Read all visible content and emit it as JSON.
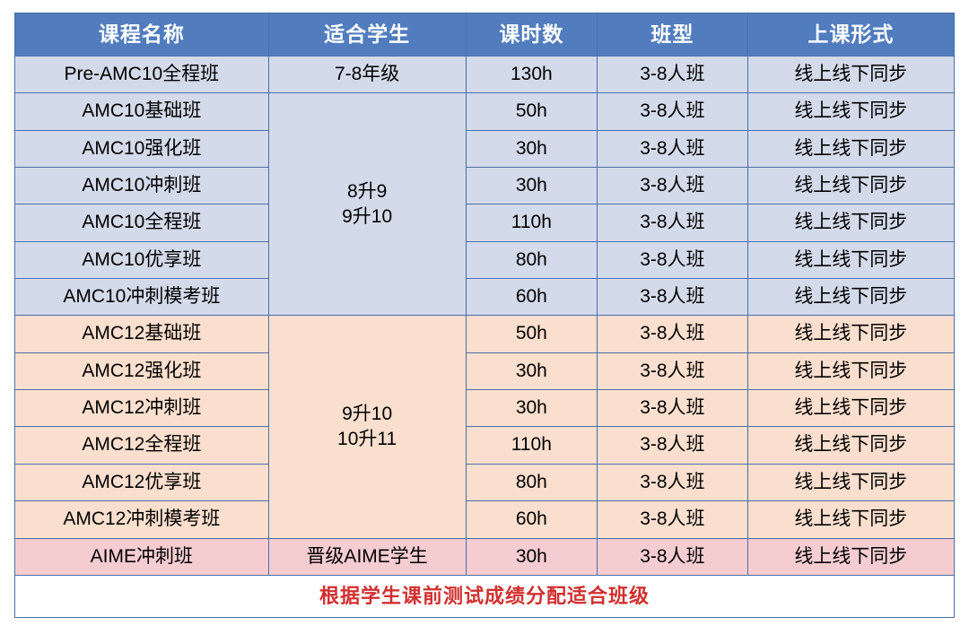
{
  "style": {
    "header_bg": "#517dbe",
    "header_fg": "#ffffff",
    "border_color": "#4a6fa8",
    "section_a_bg": "#d3daea",
    "section_b_bg": "#fbdfce",
    "section_c_bg": "#f5cdd1",
    "footer_fg": "#d22f2f",
    "text_color": "#000000",
    "header_fontsize": 23,
    "cell_fontsize": 21,
    "column_widths_pct": [
      27,
      21,
      14,
      16,
      22
    ]
  },
  "headers": [
    "课程名称",
    "适合学生",
    "课时数",
    "班型",
    "上课形式"
  ],
  "sections": [
    {
      "bg_class": "row-a",
      "rows": [
        {
          "name": "Pre-AMC10全程班",
          "student": "7-8年级",
          "hours": "130h",
          "class": "3-8人班",
          "mode": "线上线下同步"
        }
      ]
    },
    {
      "bg_class": "row-a",
      "student_merged": "8升9\n9升10",
      "rows": [
        {
          "name": "AMC10基础班",
          "hours": "50h",
          "class": "3-8人班",
          "mode": "线上线下同步"
        },
        {
          "name": "AMC10强化班",
          "hours": "30h",
          "class": "3-8人班",
          "mode": "线上线下同步"
        },
        {
          "name": "AMC10冲刺班",
          "hours": "30h",
          "class": "3-8人班",
          "mode": "线上线下同步"
        },
        {
          "name": "AMC10全程班",
          "hours": "110h",
          "class": "3-8人班",
          "mode": "线上线下同步"
        },
        {
          "name": "AMC10优享班",
          "hours": "80h",
          "class": "3-8人班",
          "mode": "线上线下同步"
        },
        {
          "name": "AMC10冲刺模考班",
          "hours": "60h",
          "class": "3-8人班",
          "mode": "线上线下同步"
        }
      ]
    },
    {
      "bg_class": "row-b",
      "student_merged": "9升10\n10升11",
      "rows": [
        {
          "name": "AMC12基础班",
          "hours": "50h",
          "class": "3-8人班",
          "mode": "线上线下同步"
        },
        {
          "name": "AMC12强化班",
          "hours": "30h",
          "class": "3-8人班",
          "mode": "线上线下同步"
        },
        {
          "name": "AMC12冲刺班",
          "hours": "30h",
          "class": "3-8人班",
          "mode": "线上线下同步"
        },
        {
          "name": "AMC12全程班",
          "hours": "110h",
          "class": "3-8人班",
          "mode": "线上线下同步"
        },
        {
          "name": "AMC12优享班",
          "hours": "80h",
          "class": "3-8人班",
          "mode": "线上线下同步"
        },
        {
          "name": "AMC12冲刺模考班",
          "hours": "60h",
          "class": "3-8人班",
          "mode": "线上线下同步"
        }
      ]
    },
    {
      "bg_class": "row-c",
      "rows": [
        {
          "name": "AIME冲刺班",
          "student": "晋级AIME学生",
          "hours": "30h",
          "class": "3-8人班",
          "mode": "线上线下同步"
        }
      ]
    }
  ],
  "footer": "根据学生课前测试成绩分配适合班级"
}
